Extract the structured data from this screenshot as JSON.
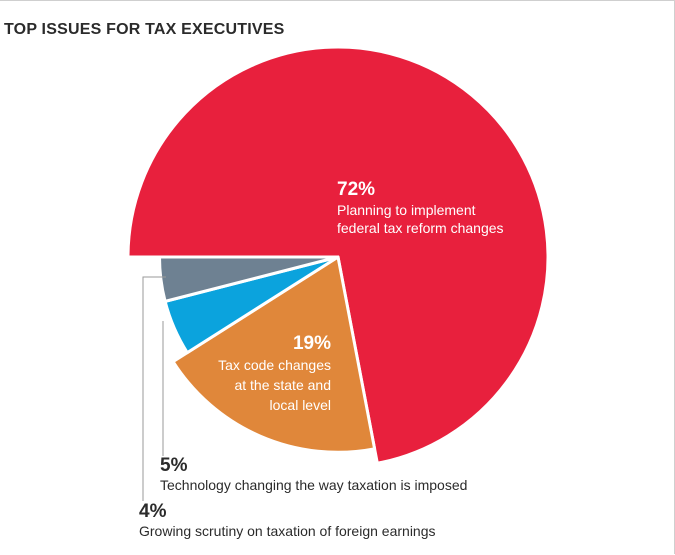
{
  "chart_data": {
    "type": "pie",
    "title": "TOP ISSUES FOR TAX EXECUTIVES",
    "slices": [
      {
        "percent": "72%",
        "value": 72,
        "label": [
          "Planning to implement",
          "federal tax reform changes"
        ],
        "color": "#e8203d"
      },
      {
        "percent": "19%",
        "value": 19,
        "label": [
          "Tax code changes",
          "at the state and",
          "local level"
        ],
        "color": "#e0873a"
      },
      {
        "percent": "5%",
        "value": 5,
        "label": [
          "Technology changing the way taxation is imposed"
        ],
        "color": "#0ba3dd"
      },
      {
        "percent": "4%",
        "value": 4,
        "label": [
          "Growing scrutiny on taxation of foreign earnings"
        ],
        "color": "#6e8192"
      }
    ]
  }
}
